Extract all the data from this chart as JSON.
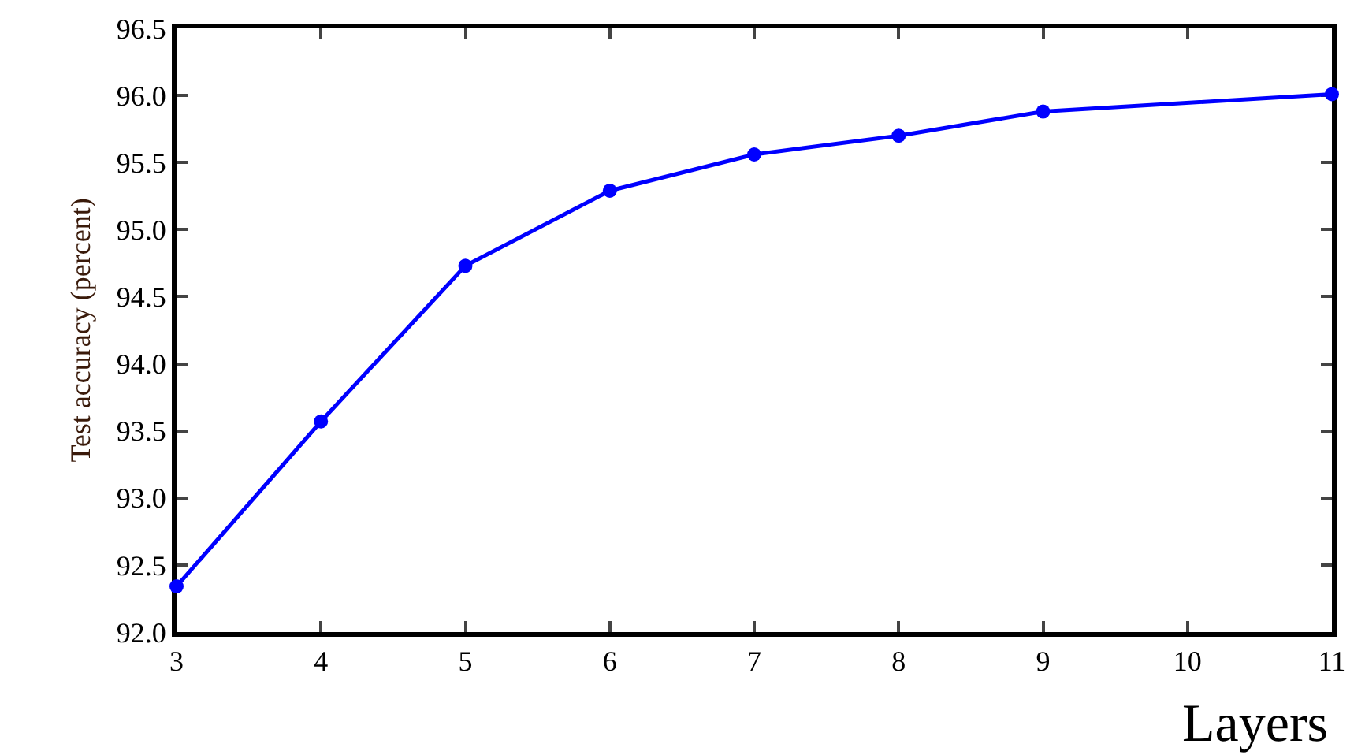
{
  "chart_data": {
    "type": "line",
    "xlabel": "Layers",
    "ylabel": "Test accuracy (percent)",
    "x": [
      3,
      4,
      5,
      6,
      7,
      8,
      9,
      11
    ],
    "series": [
      {
        "color": "#0000ff",
        "values": [
          92.34,
          93.57,
          94.73,
          95.29,
          95.56,
          95.7,
          95.88,
          96.01
        ]
      }
    ],
    "xlim": [
      3,
      11
    ],
    "xticks": [
      3,
      4,
      5,
      6,
      7,
      8,
      9,
      10,
      11
    ],
    "ylim": [
      92,
      96.5
    ],
    "yticks": [
      {
        "value": 92,
        "label": "92.0"
      },
      {
        "value": 92.5,
        "label": "92.5"
      },
      {
        "value": 93,
        "label": "93.0"
      },
      {
        "value": 93.5,
        "label": "93.5"
      },
      {
        "value": 94,
        "label": "94.0"
      },
      {
        "value": 94.5,
        "label": "94.5"
      },
      {
        "value": 95,
        "label": "95.0"
      },
      {
        "value": 95.5,
        "label": "95.5"
      },
      {
        "value": 96,
        "label": "96.0"
      },
      {
        "value": 96.5,
        "label": "96.5"
      }
    ],
    "grid": false,
    "marker": "circle",
    "line_style": "solid"
  }
}
